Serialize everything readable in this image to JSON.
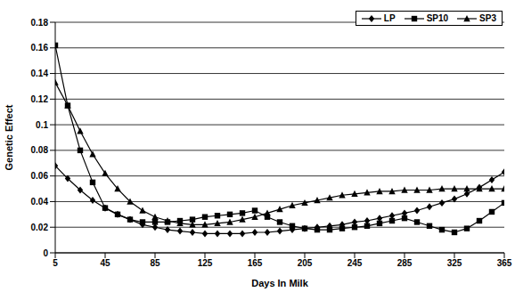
{
  "chart_data": {
    "type": "line",
    "x_label": "Days In Milk",
    "y_label": "Genetic Effect",
    "x": [
      5,
      15,
      25,
      35,
      45,
      55,
      65,
      75,
      85,
      95,
      105,
      115,
      125,
      135,
      145,
      155,
      165,
      175,
      185,
      195,
      205,
      215,
      225,
      235,
      245,
      255,
      265,
      275,
      285,
      295,
      305,
      315,
      325,
      335,
      345,
      355,
      365
    ],
    "series": [
      {
        "name": "LP",
        "color": "#000000",
        "marker": "diamond",
        "values": [
          0.068,
          0.058,
          0.049,
          0.041,
          0.035,
          0.03,
          0.026,
          0.022,
          0.02,
          0.018,
          0.017,
          0.016,
          0.015,
          0.015,
          0.015,
          0.015,
          0.016,
          0.016,
          0.017,
          0.018,
          0.019,
          0.02,
          0.021,
          0.022,
          0.024,
          0.025,
          0.027,
          0.029,
          0.031,
          0.033,
          0.036,
          0.039,
          0.042,
          0.046,
          0.051,
          0.057,
          0.063
        ]
      },
      {
        "name": "SP10",
        "color": "#000000",
        "marker": "square",
        "values": [
          0.162,
          0.115,
          0.08,
          0.055,
          0.035,
          0.03,
          0.026,
          0.024,
          0.024,
          0.024,
          0.025,
          0.026,
          0.028,
          0.029,
          0.03,
          0.031,
          0.033,
          0.028,
          0.024,
          0.021,
          0.019,
          0.018,
          0.018,
          0.019,
          0.02,
          0.021,
          0.023,
          0.025,
          0.027,
          0.024,
          0.021,
          0.018,
          0.016,
          0.019,
          0.025,
          0.032,
          0.039
        ]
      },
      {
        "name": "SP3",
        "color": "#000000",
        "marker": "triangle",
        "values": [
          0.133,
          0.115,
          0.095,
          0.077,
          0.062,
          0.05,
          0.04,
          0.033,
          0.028,
          0.025,
          0.023,
          0.022,
          0.022,
          0.023,
          0.024,
          0.026,
          0.028,
          0.031,
          0.034,
          0.037,
          0.039,
          0.041,
          0.043,
          0.045,
          0.046,
          0.047,
          0.048,
          0.048,
          0.049,
          0.049,
          0.049,
          0.05,
          0.05,
          0.05,
          0.05,
          0.05,
          0.05
        ]
      }
    ],
    "xlim": [
      5,
      365
    ],
    "xticks": [
      5,
      45,
      85,
      125,
      165,
      205,
      245,
      285,
      325,
      365
    ],
    "ylim": [
      0,
      0.18
    ],
    "yticks": [
      0,
      0.02,
      0.04,
      0.06,
      0.08,
      0.1,
      0.12,
      0.14,
      0.16,
      0.18
    ],
    "grid": true,
    "legend": "top-right"
  }
}
